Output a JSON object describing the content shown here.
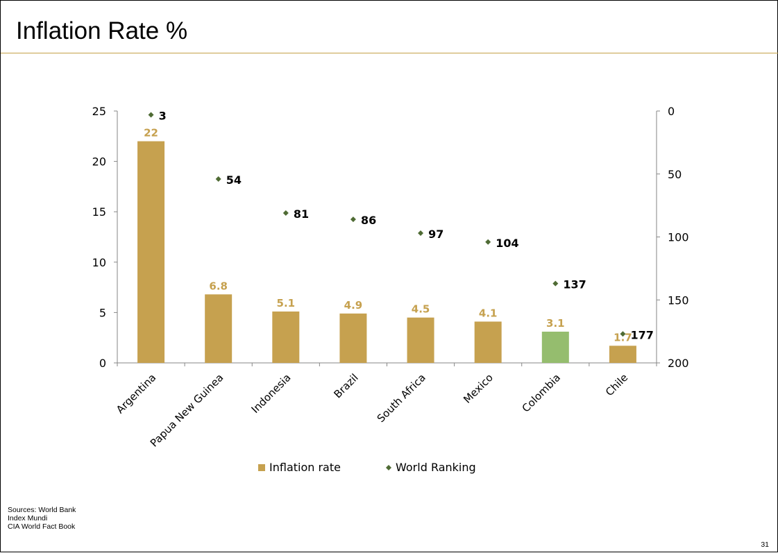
{
  "slide": {
    "title": "Inflation Rate %",
    "sources": [
      "Sources: World Bank",
      "Index Mundi",
      "CIA World Fact Book"
    ],
    "page_number": "31"
  },
  "colors": {
    "bar": "#c6a14f",
    "bar_highlight": "#95bd6e",
    "bar_label": "#c6a14f",
    "marker": "#4f6b34",
    "title_rule": "#c4a046",
    "axis": "#868686"
  },
  "chart_data": {
    "type": "bar",
    "categories": [
      "Argentina",
      "Papua New Guinea",
      "Indonesia",
      "Brazil",
      "South Africa",
      "Mexico",
      "Colombia",
      "Chile"
    ],
    "series": [
      {
        "name": "Inflation rate",
        "type": "bar",
        "axis": "left",
        "values": [
          22,
          6.8,
          5.1,
          4.9,
          4.5,
          4.1,
          3.1,
          1.7
        ],
        "labels": [
          "22",
          "6.8",
          "5.1",
          "4.9",
          "4.5",
          "4.1",
          "3.1",
          "1.7"
        ],
        "highlight_index": 6
      },
      {
        "name": "World Ranking",
        "type": "scatter",
        "axis": "right",
        "values": [
          3,
          54,
          81,
          86,
          97,
          104,
          137,
          177
        ],
        "labels": [
          "3",
          "54",
          "81",
          "86",
          "97",
          "104",
          "137",
          "177"
        ]
      }
    ],
    "left_axis": {
      "ylim": [
        0,
        25
      ],
      "ticks": [
        "0",
        "5",
        "10",
        "15",
        "20",
        "25"
      ]
    },
    "right_axis": {
      "ylim": [
        0,
        200
      ],
      "reversed": true,
      "ticks": [
        "0",
        "50",
        "100",
        "150",
        "200"
      ]
    },
    "legend": {
      "position": "bottom",
      "items": [
        "Inflation rate",
        "World Ranking"
      ]
    },
    "grid": false
  }
}
